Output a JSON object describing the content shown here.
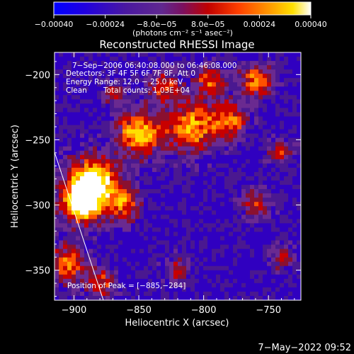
{
  "chart_data": {
    "type": "heatmap",
    "title": "Reconstructed RHESSI Image",
    "xlabel": "Heliocentric X (arcsec)",
    "ylabel": "Heliocentric Y (arcsec)",
    "xlim": [
      -915,
      -725
    ],
    "ylim": [
      -373,
      -183
    ],
    "x_ticks": [
      -900,
      -850,
      -800,
      -750
    ],
    "x_tick_labels": [
      "−900",
      "−850",
      "−800",
      "−750"
    ],
    "y_ticks": [
      -200,
      -250,
      -300,
      -350
    ],
    "y_tick_labels": [
      "−200",
      "−250",
      "−300",
      "−350"
    ],
    "colorbar": {
      "min": -0.0004,
      "max": 0.0004,
      "ticks": [
        -0.0004,
        -0.00024,
        -8e-05,
        8e-05,
        0.00024,
        0.0004
      ],
      "tick_labels": [
        "−0.00040",
        "−0.00024",
        "−8.0e−05",
        "8.0e−05",
        "0.00024",
        "0.00040"
      ],
      "units": "(photons cm⁻² s⁻¹ asec⁻²)",
      "colors": [
        "#0000ff",
        "#3000c0",
        "#4a1890",
        "#6a2a90",
        "#8a1030",
        "#c80000",
        "#ff5000",
        "#ffa000",
        "#ffe000",
        "#ffffff"
      ]
    },
    "annotations": {
      "time_range": "7−Sep−2006 06:40:08.000 to 06:46:08.000",
      "detectors": "Detectors: 3F 4F 5F 6F 7F 8F, Att 0",
      "energy_range": "Energy Range: 12.0 − 25.0 keV",
      "clean": "Clean",
      "total_counts": "Total counts: 1.03E+04",
      "peak": "Position of Peak = [−885,−284]"
    },
    "peak_position": [
      -885,
      -284
    ],
    "limb_line": true,
    "grid": false
  },
  "timestamp": "7−May−2022 09:52"
}
